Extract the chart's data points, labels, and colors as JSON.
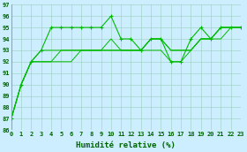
{
  "xlabel": "Humidité relative (%)",
  "bg_color": "#cceeff",
  "grid_color": "#99ccbb",
  "line_color": "#00bb00",
  "xmin": 0,
  "xmax": 23,
  "ymin": 86,
  "ymax": 97,
  "series_with_markers": [
    [
      87,
      90,
      92,
      93,
      95,
      95,
      95,
      95,
      95,
      95,
      96,
      94,
      94,
      93,
      94,
      94,
      92,
      92,
      94,
      95,
      94,
      95,
      95,
      95
    ]
  ],
  "series_plain": [
    [
      87,
      90,
      92,
      93,
      93,
      93,
      93,
      93,
      93,
      93,
      94,
      93,
      93,
      93,
      94,
      94,
      93,
      93,
      93,
      94,
      94,
      95,
      95,
      95
    ],
    [
      87,
      90,
      92,
      92,
      92,
      93,
      93,
      93,
      93,
      93,
      93,
      93,
      93,
      93,
      94,
      94,
      93,
      93,
      93,
      94,
      94,
      94,
      95,
      95
    ],
    [
      87,
      90,
      92,
      92,
      92,
      92,
      92,
      93,
      93,
      93,
      93,
      93,
      93,
      93,
      93,
      93,
      92,
      92,
      93,
      94,
      94,
      95,
      95,
      95
    ]
  ],
  "xlabel_fontsize": 6.5,
  "tick_fontsize": 5,
  "tick_color": "#006600"
}
